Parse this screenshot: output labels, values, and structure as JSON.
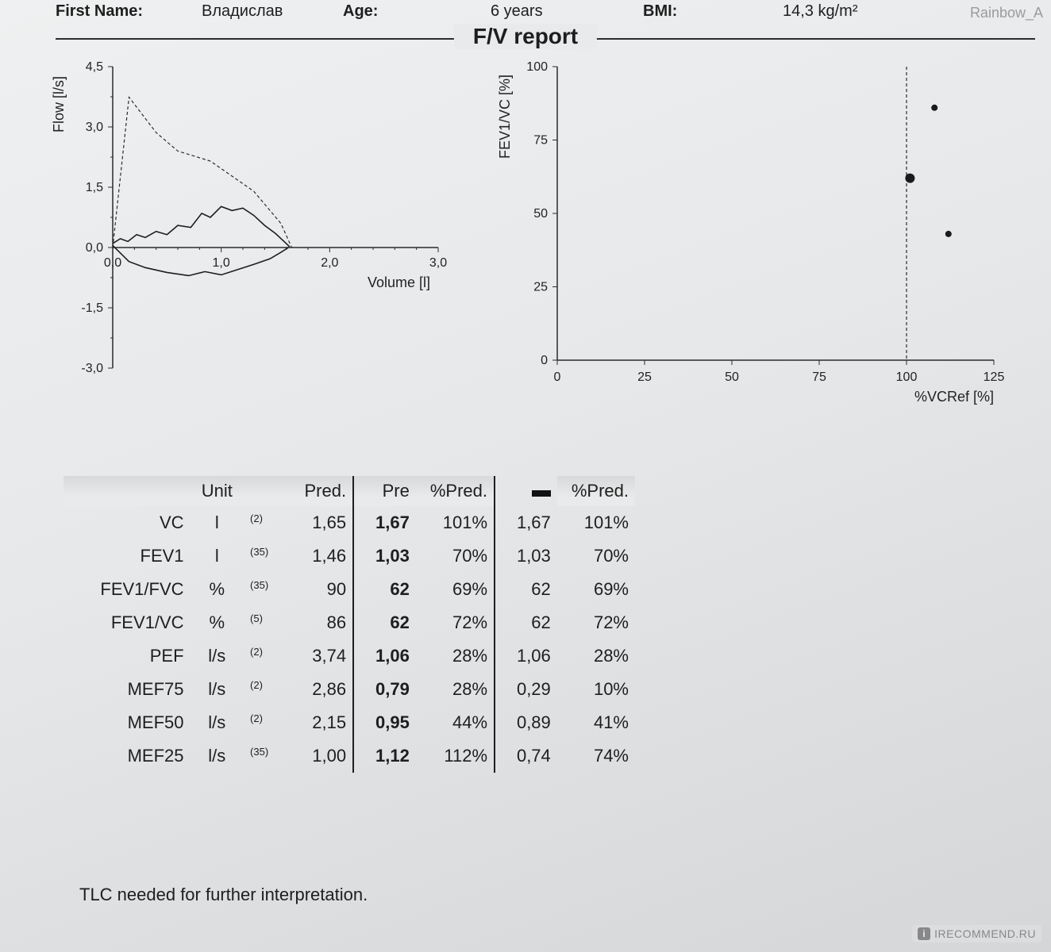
{
  "patient": {
    "first_name_label": "First Name:",
    "first_name": "Владислав",
    "age_label": "Age:",
    "age": "6 years",
    "bmi_label": "BMI:",
    "bmi": "14,3 kg/m²"
  },
  "section_title": "F/V report",
  "flow_volume_chart": {
    "type": "line",
    "xlabel": "Volume [l]",
    "ylabel": "Flow [l/s]",
    "xlim": [
      0,
      3.0
    ],
    "xtick_step": 1.0,
    "ylim": [
      -3.0,
      4.5
    ],
    "ytick_step": 1.5,
    "axis_color": "#2b2b2b",
    "tick_fontsize": 16,
    "label_fontsize": 18,
    "predicted": {
      "style": "dashed",
      "color": "#2c2c2c",
      "width": 1.2,
      "points": [
        [
          0,
          0
        ],
        [
          0.15,
          3.74
        ],
        [
          0.4,
          2.86
        ],
        [
          0.6,
          2.4
        ],
        [
          0.9,
          2.15
        ],
        [
          1.3,
          1.4
        ],
        [
          1.55,
          0.6
        ],
        [
          1.65,
          0
        ]
      ]
    },
    "measured_exp": {
      "style": "solid",
      "color": "#1e1e1e",
      "width": 1.6,
      "points": [
        [
          0,
          0.1
        ],
        [
          0.07,
          0.22
        ],
        [
          0.14,
          0.15
        ],
        [
          0.22,
          0.32
        ],
        [
          0.3,
          0.25
        ],
        [
          0.4,
          0.4
        ],
        [
          0.5,
          0.32
        ],
        [
          0.6,
          0.55
        ],
        [
          0.72,
          0.5
        ],
        [
          0.82,
          0.85
        ],
        [
          0.9,
          0.75
        ],
        [
          1.0,
          1.02
        ],
        [
          1.1,
          0.92
        ],
        [
          1.2,
          0.98
        ],
        [
          1.3,
          0.8
        ],
        [
          1.4,
          0.55
        ],
        [
          1.5,
          0.35
        ],
        [
          1.58,
          0.15
        ],
        [
          1.63,
          0.02
        ]
      ]
    },
    "measured_insp": {
      "style": "solid",
      "color": "#1e1e1e",
      "width": 1.6,
      "points": [
        [
          0,
          0.05
        ],
        [
          0.15,
          -0.35
        ],
        [
          0.3,
          -0.5
        ],
        [
          0.5,
          -0.62
        ],
        [
          0.7,
          -0.7
        ],
        [
          0.85,
          -0.6
        ],
        [
          1.0,
          -0.68
        ],
        [
          1.15,
          -0.55
        ],
        [
          1.3,
          -0.42
        ],
        [
          1.45,
          -0.28
        ],
        [
          1.55,
          -0.12
        ],
        [
          1.62,
          0.0
        ]
      ]
    }
  },
  "scatter_chart": {
    "type": "scatter",
    "xlabel": "%VCRef [%]",
    "ylabel": "FEV1/VC [%]",
    "xlim": [
      0,
      125
    ],
    "xtick_step": 25,
    "ylim": [
      0,
      100
    ],
    "ytick_step": 25,
    "ref_line_x": 100,
    "ref_line_style": "dashed",
    "ref_line_color": "#2c2c2c",
    "axis_color": "#2b2b2b",
    "tick_fontsize": 16,
    "label_fontsize": 18,
    "points": [
      {
        "x": 108,
        "y": 86,
        "r": 4,
        "color": "#1a1a1a"
      },
      {
        "x": 101,
        "y": 62,
        "r": 6,
        "color": "#1a1a1a"
      },
      {
        "x": 112,
        "y": 43,
        "r": 4,
        "color": "#1a1a1a"
      }
    ]
  },
  "table": {
    "headers": {
      "unit": "Unit",
      "pred": "Pred.",
      "pre": "Pre",
      "pp1": "%Pred.",
      "pp2": "%Pred."
    },
    "rows": [
      {
        "param": "VC",
        "unit": "l",
        "sup": "(2)",
        "pred": "1,65",
        "pre": "1,67",
        "pp1": "101%",
        "post": "1,67",
        "pp2": "101%"
      },
      {
        "param": "FEV1",
        "unit": "l",
        "sup": "(35)",
        "pred": "1,46",
        "pre": "1,03",
        "pp1": "70%",
        "post": "1,03",
        "pp2": "70%"
      },
      {
        "param": "FEV1/FVC",
        "unit": "%",
        "sup": "(35)",
        "pred": "90",
        "pre": "62",
        "pp1": "69%",
        "post": "62",
        "pp2": "69%"
      },
      {
        "param": "FEV1/VC",
        "unit": "%",
        "sup": "(5)",
        "pred": "86",
        "pre": "62",
        "pp1": "72%",
        "post": "62",
        "pp2": "72%"
      },
      {
        "param": "PEF",
        "unit": "l/s",
        "sup": "(2)",
        "pred": "3,74",
        "pre": "1,06",
        "pp1": "28%",
        "post": "1,06",
        "pp2": "28%"
      },
      {
        "param": "MEF75",
        "unit": "l/s",
        "sup": "(2)",
        "pred": "2,86",
        "pre": "0,79",
        "pp1": "28%",
        "post": "0,29",
        "pp2": "10%"
      },
      {
        "param": "MEF50",
        "unit": "l/s",
        "sup": "(2)",
        "pred": "2,15",
        "pre": "0,95",
        "pp1": "44%",
        "post": "0,89",
        "pp2": "41%"
      },
      {
        "param": "MEF25",
        "unit": "l/s",
        "sup": "(35)",
        "pred": "1,00",
        "pre": "1,12",
        "pp1": "112%",
        "post": "0,74",
        "pp2": "74%"
      }
    ]
  },
  "footnote": "TLC needed for further interpretation.",
  "watermark_user": "Rainbow_A",
  "watermark_site": "IRECOMMEND.RU"
}
